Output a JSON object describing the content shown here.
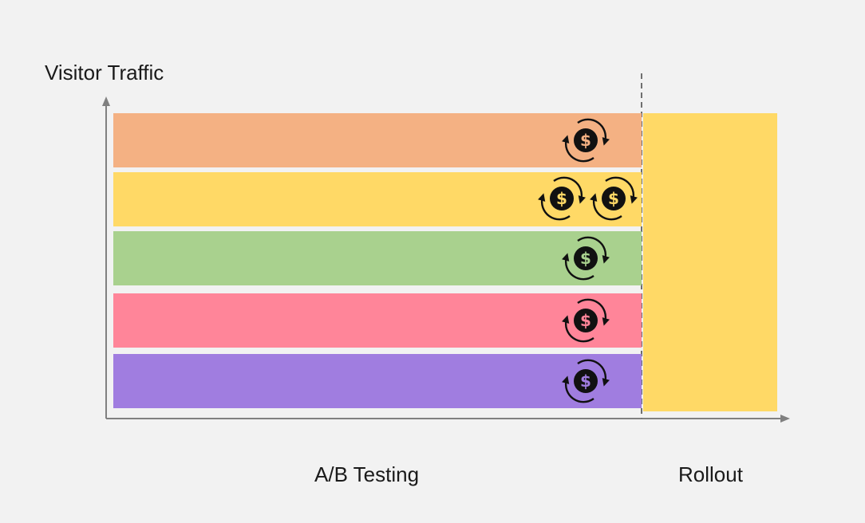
{
  "y_axis_title": "Visitor Traffic",
  "phases": {
    "ab_testing": "A/B Testing",
    "rollout": "Rollout"
  },
  "bands": [
    {
      "color": "#f4b183",
      "icons": [
        "dollar-cycle-icon"
      ]
    },
    {
      "color": "#ffd966",
      "icons": [
        "dollar-cycle-icon",
        "dollar-cycle-icon"
      ]
    },
    {
      "color": "#a9d18e",
      "icons": [
        "dollar-cycle-icon"
      ]
    },
    {
      "color": "#ff8599",
      "icons": [
        "dollar-cycle-icon"
      ]
    },
    {
      "color": "#a07de0",
      "icons": [
        "dollar-cycle-icon"
      ]
    }
  ],
  "rollout_color": "#ffd966",
  "axis_color": "#808080"
}
